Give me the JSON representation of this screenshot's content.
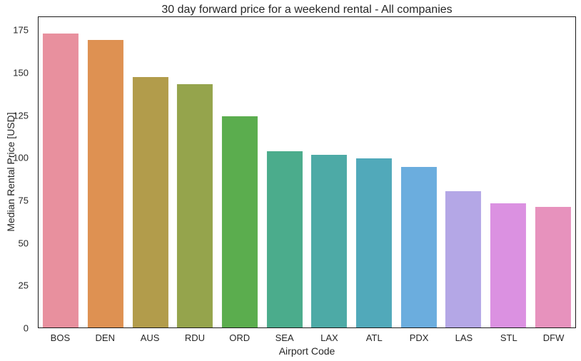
{
  "chart_data": {
    "type": "bar",
    "title": "30 day forward price for a weekend rental - All companies",
    "xlabel": "Airport Code",
    "ylabel": "Median Rental Price [USD]",
    "categories": [
      "BOS",
      "DEN",
      "AUS",
      "RDU",
      "ORD",
      "SEA",
      "LAX",
      "ATL",
      "PDX",
      "LAS",
      "STL",
      "DFW"
    ],
    "values": [
      173.5,
      169.5,
      147.5,
      143.5,
      124.5,
      104,
      102,
      99.5,
      94.5,
      80.5,
      73,
      71
    ],
    "bar_colors": [
      "#e8909e",
      "#de9152",
      "#b29c4b",
      "#95a44c",
      "#5bad4e",
      "#4bac8c",
      "#4daaa6",
      "#51a9ba",
      "#6badde",
      "#b4a7e6",
      "#db91e1",
      "#e792bd"
    ],
    "yticks": [
      0,
      25,
      50,
      75,
      100,
      125,
      150,
      175
    ],
    "ylim": [
      0,
      183
    ],
    "bar_slot_fraction": 0.8,
    "grid": false,
    "legend_position": "none",
    "background_color": "#ffffff",
    "spine_color": "#1a1a1a",
    "text_color": "#262626"
  }
}
